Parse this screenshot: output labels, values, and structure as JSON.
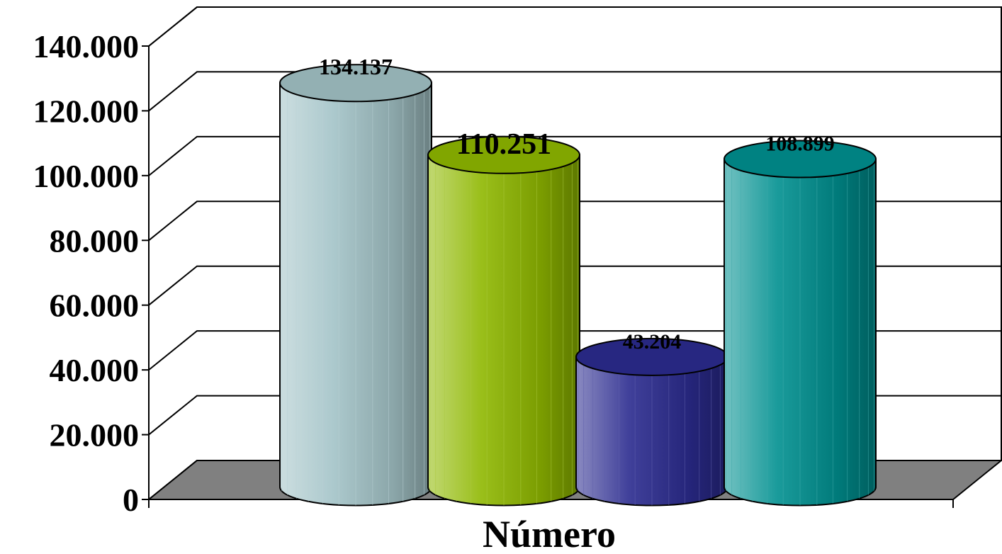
{
  "chart_data": {
    "type": "bar",
    "title": "",
    "xlabel": "Número",
    "ylabel": "",
    "ylim": [
      0,
      140000
    ],
    "yticks": [
      0,
      20000,
      40000,
      60000,
      80000,
      100000,
      120000,
      140000
    ],
    "ytick_labels": [
      "0",
      "20.000",
      "40.000",
      "60.000",
      "80.000",
      "100.000",
      "120.000",
      "140.000"
    ],
    "categories": [
      "",
      "",
      "",
      ""
    ],
    "series": [
      {
        "values": [
          134137,
          110251,
          43204,
          108899
        ]
      }
    ],
    "data_labels": [
      "134.137",
      "110.251",
      "43.204",
      "108.899"
    ],
    "bar_colors": [
      "#a3c3c7",
      "#8fb800",
      "#2b2b8f",
      "#009090"
    ],
    "grid": true,
    "legend": "none",
    "style": "3d-cylinder"
  }
}
